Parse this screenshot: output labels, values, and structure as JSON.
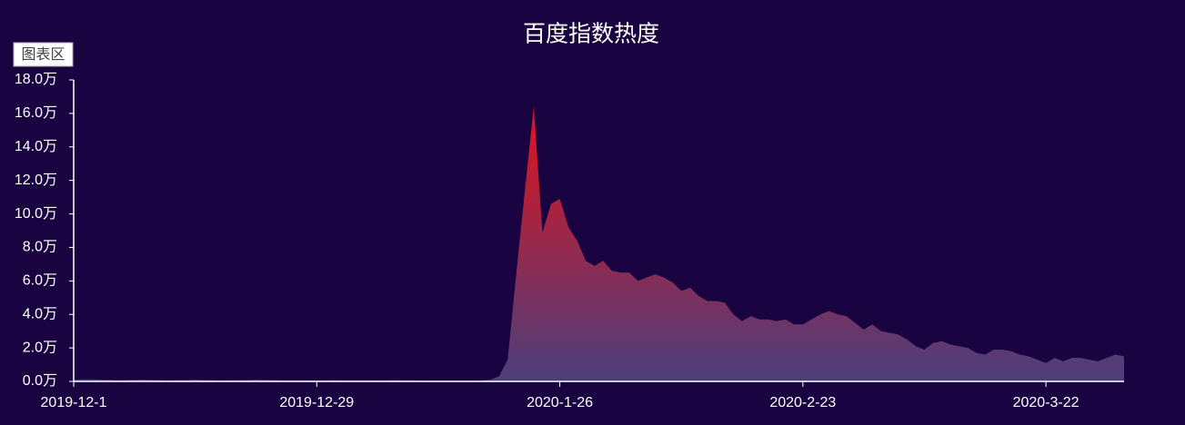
{
  "chart_data": {
    "type": "area",
    "title": "百度指数热度",
    "label": "图表区",
    "categories": [
      "2019-12-1",
      null,
      null,
      null,
      null,
      null,
      null,
      null,
      null,
      null,
      null,
      null,
      null,
      null,
      null,
      null,
      null,
      null,
      null,
      null,
      null,
      null,
      null,
      null,
      null,
      null,
      null,
      null,
      "2019-12-29",
      null,
      null,
      null,
      null,
      null,
      null,
      null,
      null,
      null,
      null,
      null,
      null,
      null,
      null,
      null,
      null,
      null,
      null,
      null,
      null,
      null,
      null,
      null,
      null,
      null,
      null,
      null,
      "2020-1-26",
      null,
      null,
      null,
      null,
      null,
      null,
      null,
      null,
      null,
      null,
      null,
      null,
      null,
      null,
      null,
      null,
      null,
      null,
      null,
      null,
      null,
      null,
      null,
      null,
      null,
      null,
      null,
      "2020-2-23",
      null,
      null,
      null,
      null,
      null,
      null,
      null,
      null,
      null,
      null,
      null,
      null,
      null,
      null,
      null,
      null,
      null,
      null,
      null,
      null,
      null,
      null,
      null,
      null,
      null,
      null,
      null,
      "2020-3-22",
      null,
      null,
      null,
      null,
      null,
      null,
      null,
      null,
      null
    ],
    "values": [
      0.1,
      0.12,
      0.12,
      0.11,
      0.1,
      0.08,
      0.09,
      0.1,
      0.11,
      0.1,
      0.08,
      0.07,
      0.08,
      0.09,
      0.1,
      0.09,
      0.08,
      0.07,
      0.07,
      0.08,
      0.09,
      0.1,
      0.09,
      0.08,
      0.07,
      0.06,
      0.07,
      0.06,
      0.06,
      0.07,
      0.08,
      0.07,
      0.06,
      0.07,
      0.06,
      0.06,
      0.07,
      0.08,
      0.07,
      0.06,
      0.05,
      0.05,
      0.04,
      0.04,
      0.04,
      0.04,
      0.05,
      0.06,
      0.1,
      0.3,
      1.3,
      6.5,
      11.5,
      16.4,
      8.9,
      10.6,
      10.9,
      9.2,
      8.4,
      7.2,
      6.9,
      7.2,
      6.6,
      6.5,
      6.5,
      6.0,
      6.2,
      6.4,
      6.2,
      5.9,
      5.4,
      5.6,
      5.1,
      4.8,
      4.8,
      4.7,
      4.0,
      3.6,
      3.9,
      3.7,
      3.7,
      3.6,
      3.7,
      3.4,
      3.4,
      3.7,
      4.0,
      4.2,
      4.0,
      3.9,
      3.5,
      3.1,
      3.4,
      3.0,
      2.9,
      2.8,
      2.5,
      2.1,
      1.9,
      2.3,
      2.4,
      2.2,
      2.1,
      2.0,
      1.7,
      1.6,
      1.9,
      1.9,
      1.8,
      1.6,
      1.5,
      1.3,
      1.1,
      1.4,
      1.2,
      1.4,
      1.4,
      1.3,
      1.2,
      1.4,
      1.6,
      1.5
    ],
    "gradient": [
      "#e3121c",
      "#4a3f7c"
    ],
    "ylim": [
      0,
      18
    ],
    "yticks": [
      {
        "value": 0,
        "label": "0.0万"
      },
      {
        "value": 2,
        "label": "2.0万"
      },
      {
        "value": 4,
        "label": "4.0万"
      },
      {
        "value": 6,
        "label": "6.0万"
      },
      {
        "value": 8,
        "label": "8.0万"
      },
      {
        "value": 10,
        "label": "10.0万"
      },
      {
        "value": 12,
        "label": "12.0万"
      },
      {
        "value": 14,
        "label": "14.0万"
      },
      {
        "value": 16,
        "label": "16.0万"
      },
      {
        "value": 18,
        "label": "18.0万"
      }
    ],
    "grid": false
  }
}
